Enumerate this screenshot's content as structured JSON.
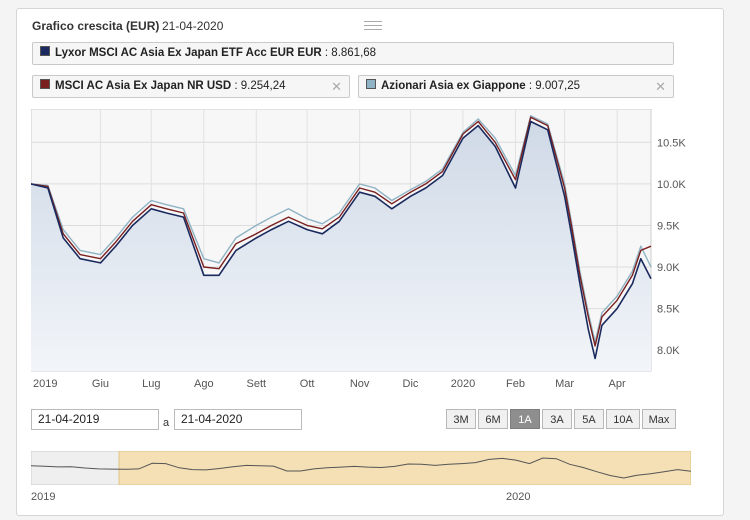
{
  "header": {
    "title": "Grafico crescita (EUR)",
    "date": "21-04-2020"
  },
  "legend": [
    {
      "name": "Lyxor MSCI AC Asia Ex Japan ETF Acc EUR EUR",
      "value": ": 8.861,68",
      "color": "#1b2a5e",
      "closable": false
    },
    {
      "name": "MSCI AC Asia Ex Japan NR USD",
      "value": ": 9.254,24",
      "color": "#7a1f1f",
      "closable": true
    },
    {
      "name": "Azionari Asia ex Giappone",
      "value": ": 9.007,25",
      "color": "#8fb3c4",
      "closable": true
    }
  ],
  "close_glyph": "✕",
  "date_range": {
    "from": "21-04-2019",
    "separator": "a",
    "to": "21-04-2020"
  },
  "range_buttons": [
    "3M",
    "6M",
    "1A",
    "3A",
    "5A",
    "10A",
    "Max"
  ],
  "active_range": "1A",
  "navigator": {
    "labels": [
      "2019",
      "2020"
    ]
  },
  "chart_data": {
    "type": "line",
    "x_tick_labels": [
      "2019",
      "Giu",
      "Lug",
      "Ago",
      "Sett",
      "Ott",
      "Nov",
      "Dic",
      "2020",
      "Feb",
      "Mar",
      "Apr"
    ],
    "y_tick_labels": [
      "8.0K",
      "8.5K",
      "9.0K",
      "9.5K",
      "10.0K",
      "10.5K"
    ],
    "ylim": [
      7750,
      10900
    ],
    "x": [
      "2019-04-21",
      "2019-05-01",
      "2019-05-10",
      "2019-05-20",
      "2019-06-01",
      "2019-06-10",
      "2019-06-20",
      "2019-07-01",
      "2019-07-10",
      "2019-07-20",
      "2019-08-01",
      "2019-08-10",
      "2019-08-20",
      "2019-09-01",
      "2019-09-10",
      "2019-09-20",
      "2019-10-01",
      "2019-10-10",
      "2019-10-20",
      "2019-11-01",
      "2019-11-10",
      "2019-11-20",
      "2019-12-01",
      "2019-12-10",
      "2019-12-20",
      "2020-01-01",
      "2020-01-10",
      "2020-01-20",
      "2020-02-01",
      "2020-02-10",
      "2020-02-20",
      "2020-03-01",
      "2020-03-05",
      "2020-03-10",
      "2020-03-15",
      "2020-03-19",
      "2020-03-23",
      "2020-04-01",
      "2020-04-10",
      "2020-04-15",
      "2020-04-21"
    ],
    "series": [
      {
        "name": "Lyxor MSCI AC Asia Ex Japan ETF Acc EUR EUR",
        "color": "#1b2a5e",
        "values": [
          10000,
          9950,
          9350,
          9100,
          9050,
          9250,
          9500,
          9700,
          9650,
          9600,
          8900,
          8900,
          9200,
          9350,
          9450,
          9550,
          9450,
          9400,
          9550,
          9900,
          9850,
          9700,
          9850,
          9950,
          10100,
          10550,
          10700,
          10450,
          9950,
          10750,
          10650,
          9850,
          9400,
          8800,
          8250,
          7900,
          8300,
          8500,
          8800,
          9100,
          8860
        ]
      },
      {
        "name": "MSCI AC Asia Ex Japan NR USD",
        "color": "#7a1f1f",
        "values": [
          10000,
          9970,
          9400,
          9150,
          9100,
          9300,
          9550,
          9750,
          9700,
          9650,
          9000,
          8980,
          9280,
          9400,
          9500,
          9600,
          9500,
          9460,
          9600,
          9950,
          9900,
          9760,
          9900,
          10000,
          10150,
          10600,
          10750,
          10500,
          10050,
          10800,
          10700,
          9950,
          9500,
          8900,
          8400,
          8050,
          8400,
          8600,
          8900,
          9200,
          9250
        ]
      },
      {
        "name": "Azionari Asia ex Giappone",
        "color": "#8fb3c4",
        "values": [
          10000,
          9980,
          9450,
          9200,
          9150,
          9350,
          9600,
          9800,
          9750,
          9700,
          9100,
          9050,
          9350,
          9500,
          9600,
          9700,
          9580,
          9520,
          9650,
          10000,
          9950,
          9800,
          9930,
          10030,
          10180,
          10620,
          10780,
          10550,
          10100,
          10820,
          10720,
          10000,
          9550,
          8950,
          8450,
          8100,
          8450,
          8650,
          8950,
          9250,
          9000
        ]
      }
    ]
  }
}
